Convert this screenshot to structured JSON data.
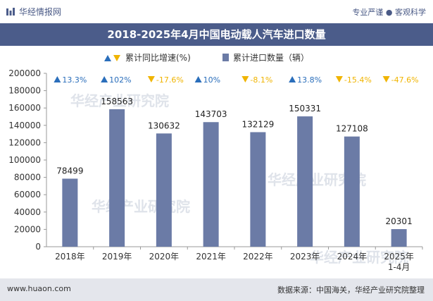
{
  "header": {
    "brand": "华经情报网",
    "tagline": "专业严谨 ● 客观科学"
  },
  "title": "2018-2025年4月中国电动载人汽车进口数量",
  "legend": {
    "growth_label": "累计同比增速(%)",
    "count_label": "累计进口数量（辆）"
  },
  "footer": {
    "site": "www.huaon.com",
    "source": "数据来源：中国海关，华经产业研究院整理"
  },
  "watermark": "华经产业研究院",
  "colors": {
    "bar": "#6b7ba6",
    "up": "#2a6ebb",
    "down": "#f0b400",
    "title_bg": "#4b5c8a",
    "footer_bg": "#e4e6ec"
  },
  "chart_data": {
    "type": "bar",
    "categories": [
      "2018年",
      "2019年",
      "2020年",
      "2021年",
      "2022年",
      "2023年",
      "2024年",
      "2025年\n1-4月"
    ],
    "values": [
      78499,
      158563,
      130632,
      143703,
      132129,
      150331,
      127108,
      20301
    ],
    "growth": [
      {
        "dir": "up",
        "text": "13.3%"
      },
      {
        "dir": "up",
        "text": "102%"
      },
      {
        "dir": "down",
        "text": "-17.6%"
      },
      {
        "dir": "up",
        "text": "10%"
      },
      {
        "dir": "down",
        "text": "-8.1%"
      },
      {
        "dir": "up",
        "text": "13.8%"
      },
      {
        "dir": "down",
        "text": "-15.4%"
      },
      {
        "dir": "down",
        "text": "-47.6%"
      }
    ],
    "ylim": [
      0,
      200000
    ],
    "yticks": [
      0,
      20000,
      40000,
      60000,
      80000,
      100000,
      120000,
      140000,
      160000,
      180000,
      200000
    ],
    "grid": false,
    "legend_position": "top-center"
  }
}
